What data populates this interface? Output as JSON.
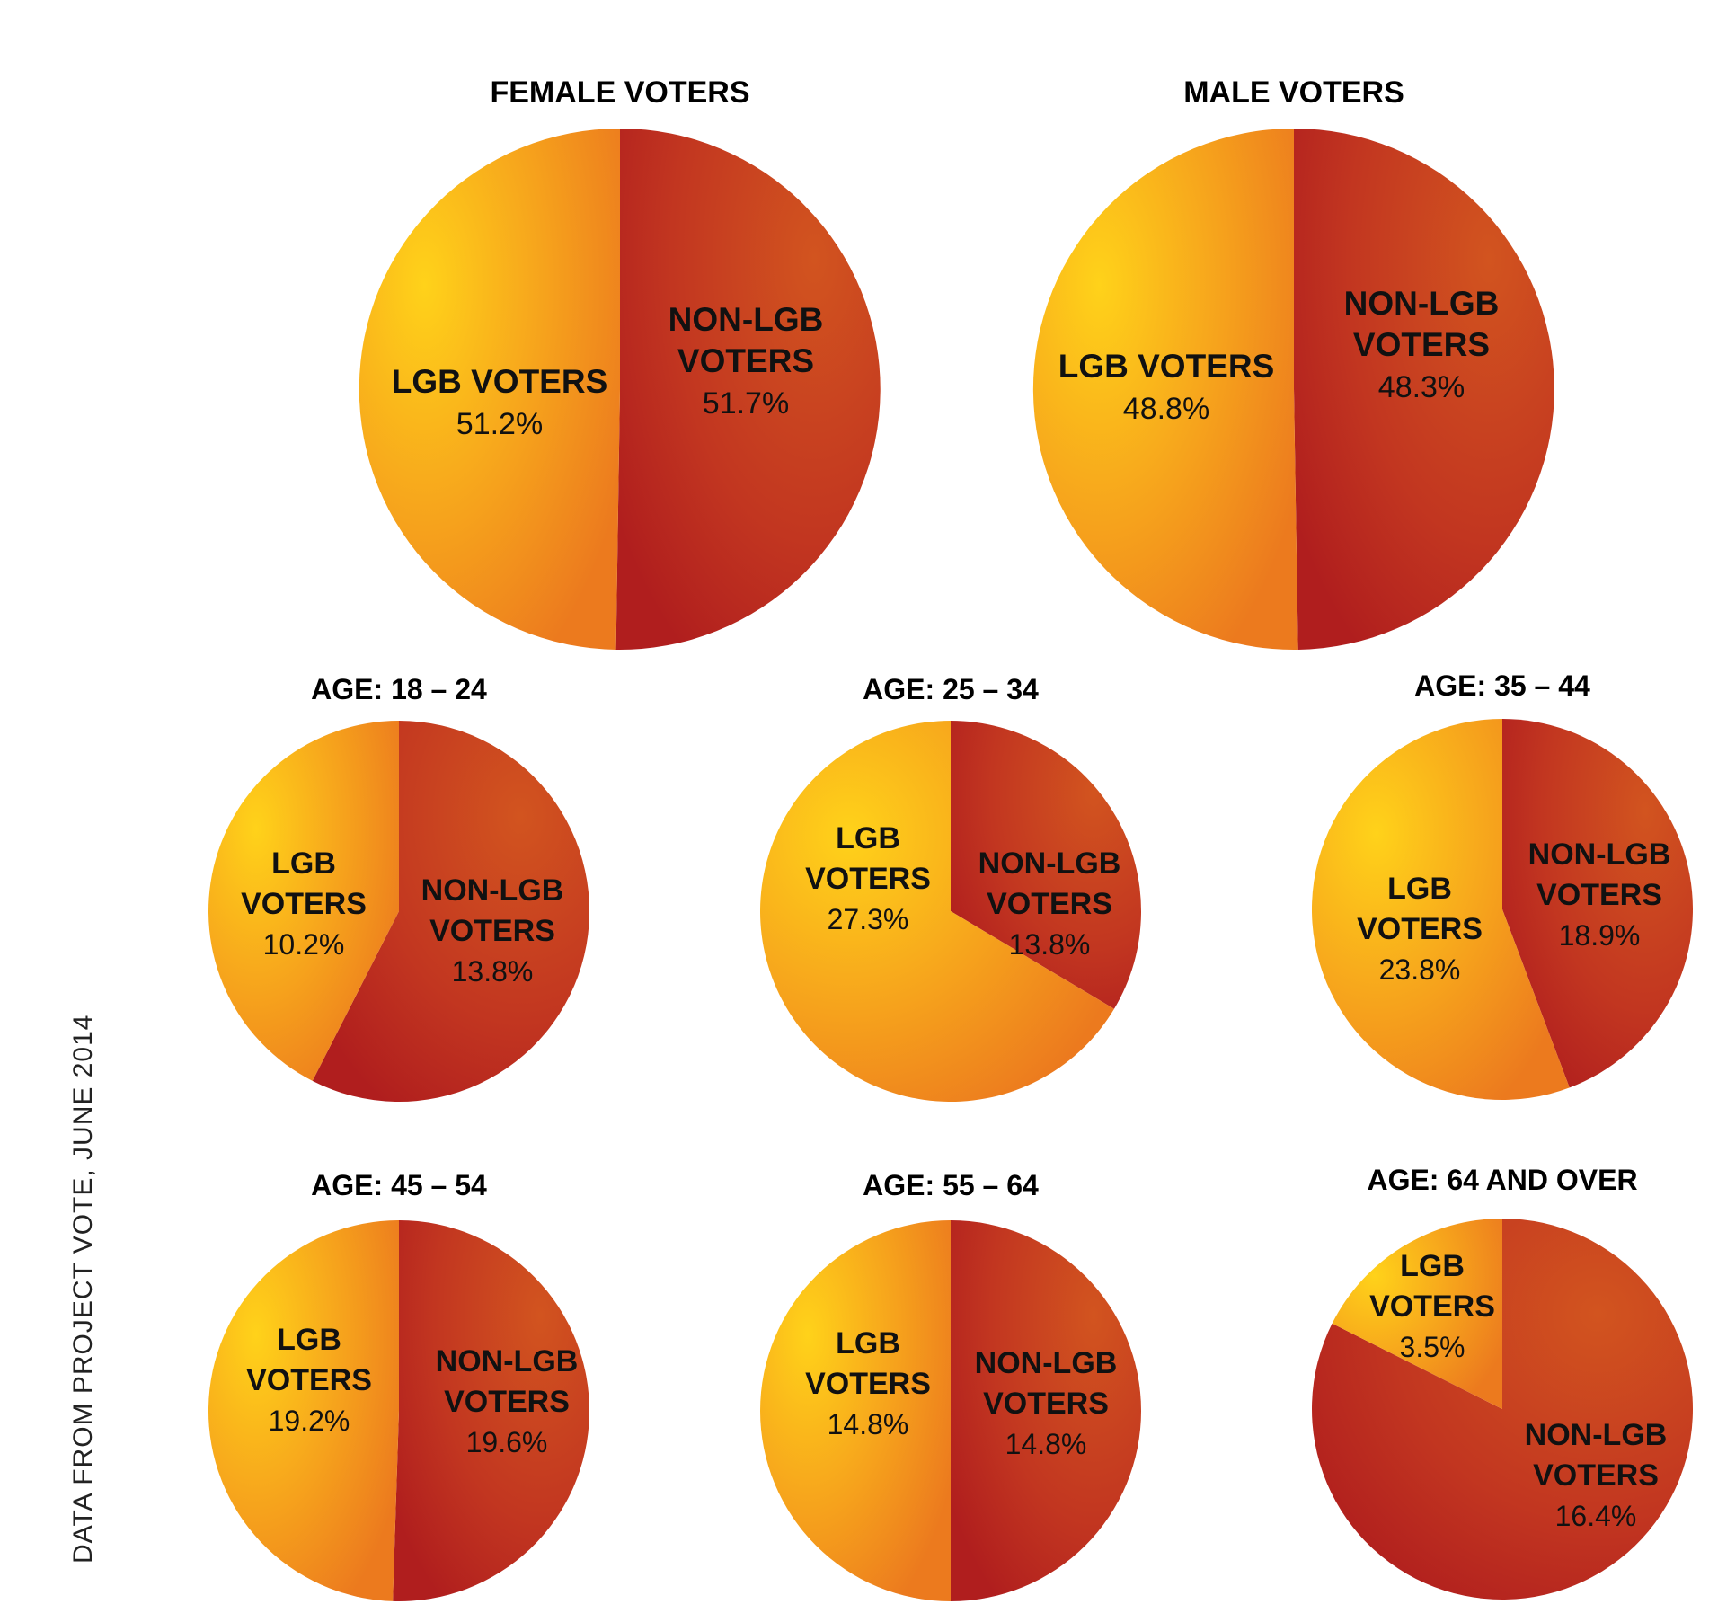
{
  "source_note": "DATA FROM PROJECT VOTE, JUNE 2014",
  "colors": {
    "lgb_light": "#ffd21a",
    "lgb_mid": "#f6a21c",
    "lgb_dark": "#ec7a1e",
    "nonlgb_light": "#d2541f",
    "nonlgb_dark": "#b01e1e",
    "text": "#111111"
  },
  "chart_data": [
    {
      "type": "pie",
      "title": "FEMALE VOTERS",
      "slices": [
        {
          "name": "NON-LGB VOTERS",
          "value": 51.7,
          "label": "51.7%",
          "series": "non-lgb"
        },
        {
          "name": "LGB VOTERS",
          "value": 51.2,
          "label": "51.2%",
          "series": "lgb"
        }
      ]
    },
    {
      "type": "pie",
      "title": "MALE VOTERS",
      "slices": [
        {
          "name": "NON-LGB VOTERS",
          "value": 48.3,
          "label": "48.3%",
          "series": "non-lgb"
        },
        {
          "name": "LGB VOTERS",
          "value": 48.8,
          "label": "48.8%",
          "series": "lgb"
        }
      ]
    },
    {
      "type": "pie",
      "title": "AGE: 18 – 24",
      "slices": [
        {
          "name": "NON-LGB VOTERS",
          "value": 13.8,
          "label": "13.8%",
          "series": "non-lgb"
        },
        {
          "name": "LGB VOTERS",
          "value": 10.2,
          "label": "10.2%",
          "series": "lgb"
        }
      ]
    },
    {
      "type": "pie",
      "title": "AGE: 25 – 34",
      "slices": [
        {
          "name": "NON-LGB VOTERS",
          "value": 13.8,
          "label": "13.8%",
          "series": "non-lgb"
        },
        {
          "name": "LGB VOTERS",
          "value": 27.3,
          "label": "27.3%",
          "series": "lgb"
        }
      ]
    },
    {
      "type": "pie",
      "title": "AGE: 35 – 44",
      "slices": [
        {
          "name": "NON-LGB VOTERS",
          "value": 18.9,
          "label": "18.9%",
          "series": "non-lgb"
        },
        {
          "name": "LGB VOTERS",
          "value": 23.8,
          "label": "23.8%",
          "series": "lgb"
        }
      ]
    },
    {
      "type": "pie",
      "title": "AGE: 45 – 54",
      "slices": [
        {
          "name": "NON-LGB VOTERS",
          "value": 19.6,
          "label": "19.6%",
          "series": "non-lgb"
        },
        {
          "name": "LGB VOTERS",
          "value": 19.2,
          "label": "19.2%",
          "series": "lgb"
        }
      ]
    },
    {
      "type": "pie",
      "title": "AGE: 55 – 64",
      "slices": [
        {
          "name": "NON-LGB VOTERS",
          "value": 14.8,
          "label": "14.8%",
          "series": "non-lgb"
        },
        {
          "name": "LGB VOTERS",
          "value": 14.8,
          "label": "14.8%",
          "series": "lgb"
        }
      ]
    },
    {
      "type": "pie",
      "title": "AGE: 64 AND OVER",
      "slices": [
        {
          "name": "NON-LGB VOTERS",
          "value": 16.4,
          "label": "16.4%",
          "series": "non-lgb"
        },
        {
          "name": "LGB VOTERS",
          "value": 3.5,
          "label": "3.5%",
          "series": "lgb"
        }
      ]
    }
  ]
}
